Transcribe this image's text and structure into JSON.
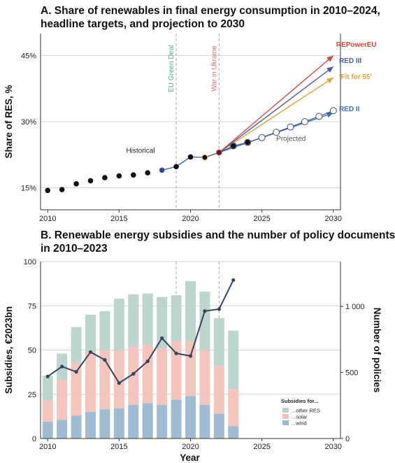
{
  "panel_a_title": [
    "A. Share of renewables in final energy  consumption in 2010–2024,",
    "headline targets, and projection to 2030"
  ],
  "panel_b_title": [
    "B. Renewable energy subsidies and the number of policy documents",
    "in 2010–2023"
  ],
  "colors": {
    "historical": "#111111",
    "projected_line": "#3a5a9a",
    "red_ii": "#3a6fc4",
    "red_iii": "#4a58a8",
    "fit_for_55": "#e6a23c",
    "repowereu": "#d9473b",
    "green_deal": "#5aa89a",
    "war": "#e0706a",
    "wind": "#9ab8d0",
    "solar": "#f2c2b8",
    "other_res": "#b9d3cc",
    "policies": "#34455e"
  },
  "chart_data": [
    {
      "type": "line",
      "title": "A. Share of renewables in final energy  consumption in 2010–2024, headline targets, and projection to 2030",
      "xlabel": "",
      "ylabel": "Share of RES, %",
      "xlim": [
        2009.5,
        2030.5
      ],
      "ylim": [
        10,
        50
      ],
      "x_ticks": [
        "2010",
        "2015",
        "2020",
        "2025",
        "2030"
      ],
      "y_ticks": [
        {
          "v": 15,
          "label": "15%"
        },
        {
          "v": 30,
          "label": "30%"
        },
        {
          "v": 45,
          "label": "45%"
        }
      ],
      "grid": "horizontal",
      "series": [
        {
          "name": "Historical",
          "x": [
            2010,
            2011,
            2012,
            2013,
            2014,
            2015,
            2016,
            2017,
            2018,
            2019,
            2020,
            2021,
            2022,
            2023,
            2024
          ],
          "values": [
            14.4,
            14.6,
            15.9,
            16.6,
            17.3,
            17.7,
            17.9,
            18.4,
            19.0,
            19.8,
            22.0,
            21.9,
            23.0,
            24.5,
            25.3
          ]
        },
        {
          "name": "Projected",
          "x": [
            2018,
            2019,
            2020,
            2021,
            2022,
            2023,
            2024,
            2025,
            2026,
            2027,
            2028,
            2029,
            2030
          ],
          "values": [
            19.0,
            19.8,
            22.0,
            21.9,
            23.0,
            24.5,
            25.3,
            26.4,
            27.6,
            28.8,
            30.0,
            31.2,
            32.5
          ]
        },
        {
          "name": "RED II",
          "x": [
            2022,
            2030
          ],
          "values": [
            23.0,
            32.0
          ]
        },
        {
          "name": "'Fit for 55'",
          "x": [
            2022,
            2030
          ],
          "values": [
            23.0,
            40.0
          ]
        },
        {
          "name": "RED III",
          "x": [
            2022,
            2030
          ],
          "values": [
            23.0,
            42.5
          ]
        },
        {
          "name": "REPowerEU",
          "x": [
            2022,
            2030
          ],
          "values": [
            23.0,
            45.0
          ]
        }
      ],
      "vlines": [
        {
          "x": 2019,
          "label": "EU Green Deal"
        },
        {
          "x": 2022,
          "label": "War in Ukraine"
        }
      ],
      "annotations": [
        "Historical",
        "Projected",
        "REPowerEU",
        "RED III",
        "'Fit for 55'",
        "RED II"
      ]
    },
    {
      "type": "bar",
      "title": "B. Renewable energy subsidies and the number of policy documents in 2010–2023",
      "xlabel": "Year",
      "ylabel": "Subsidies, €2023bn",
      "y2label": "Number of policies",
      "xlim": [
        2009.5,
        2030.5
      ],
      "ylim": [
        0,
        100
      ],
      "y2lim": [
        0,
        1340
      ],
      "x_ticks": [
        "2010",
        "2015",
        "2020",
        "2025",
        "2030"
      ],
      "y_ticks": [
        {
          "v": 0,
          "label": "0"
        },
        {
          "v": 25,
          "label": "25"
        },
        {
          "v": 50,
          "label": "50"
        },
        {
          "v": 75,
          "label": "75"
        },
        {
          "v": 100,
          "label": "100"
        }
      ],
      "y2_ticks": [
        {
          "v": 0,
          "label": "0"
        },
        {
          "v": 500,
          "label": "500"
        },
        {
          "v": 1000,
          "label": "1 000"
        }
      ],
      "grid": "horizontal",
      "legend_title": "Subsidies for...",
      "legend_position": "bottom-right",
      "categories": [
        2010,
        2011,
        2012,
        2013,
        2014,
        2015,
        2016,
        2017,
        2018,
        2019,
        2020,
        2021,
        2022,
        2023
      ],
      "series": [
        {
          "name": "...wind",
          "values": [
            9.5,
            10.5,
            13,
            15,
            16.5,
            17,
            19,
            20,
            19,
            22,
            24,
            19,
            14,
            7
          ]
        },
        {
          "name": "...solar",
          "values": [
            12,
            22.5,
            30,
            34,
            33.5,
            33,
            33,
            33,
            32,
            33,
            31,
            31,
            27,
            21
          ]
        },
        {
          "name": "...other RES",
          "values": [
            14,
            15,
            20,
            21,
            22,
            29,
            29.5,
            29,
            29,
            26,
            34,
            33,
            27,
            33
          ]
        },
        {
          "name": "Number of policies",
          "axis": "right",
          "values": [
            470,
            545,
            505,
            655,
            595,
            420,
            490,
            585,
            760,
            645,
            625,
            965,
            980,
            1200
          ]
        }
      ],
      "vlines": [
        {
          "x": 2019
        },
        {
          "x": 2022
        }
      ]
    }
  ]
}
